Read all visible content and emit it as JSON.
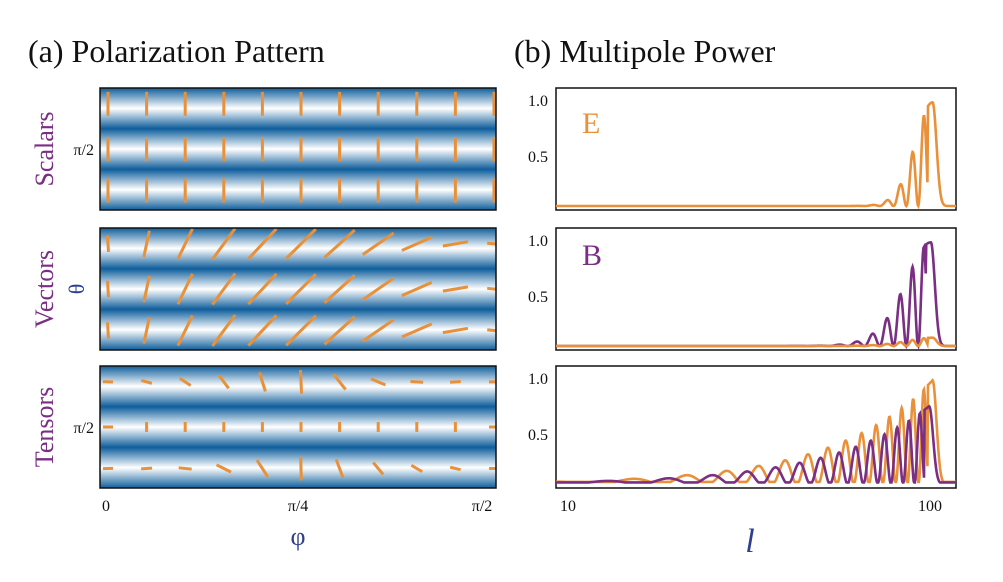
{
  "figure": {
    "panel_a_title": "(a) Polarization Pattern",
    "panel_b_title": "(b) Multipole Power"
  },
  "colors": {
    "orange": "#E8913A",
    "purple": "#7A2E84",
    "blue_dark": "#0F5E9C",
    "blue_light": "#FFFFFF",
    "axis_label": "#2F3E8F",
    "frame": "#111111"
  },
  "chart_data": [
    {
      "type": "heatmap",
      "panel": "a",
      "title": "(a) Polarization Pattern",
      "xlabel": "φ",
      "ylabel": "θ",
      "x_ticks": [
        "0",
        "π/4",
        "π/2"
      ],
      "rows": [
        {
          "name": "Scalars",
          "y_tick": "π/2",
          "pattern": "vertical"
        },
        {
          "name": "Vectors",
          "y_tick": "",
          "pattern": "tilted"
        },
        {
          "name": "Tensors",
          "y_tick": "π/2",
          "pattern": "curl"
        }
      ],
      "stripe_rows": 3,
      "stick_columns": 9
    },
    {
      "type": "line",
      "panel": "b",
      "title": "(b) Multipole Power",
      "xlabel": "l",
      "x_scale": "log",
      "x_ticks": [
        "10",
        "100"
      ],
      "xlim": [
        9,
        110
      ],
      "y_ticks": [
        "0.5",
        "1.0"
      ],
      "ylim": [
        0,
        1.1
      ],
      "rows": [
        {
          "name": "Scalars",
          "label": "E",
          "label_color": "orange",
          "series": [
            {
              "name": "E",
              "color": "orange",
              "peak_l": 95,
              "peak": 1.0,
              "envelope": "scalar"
            }
          ]
        },
        {
          "name": "Vectors",
          "label": "B",
          "label_color": "purple",
          "series": [
            {
              "name": "B",
              "color": "purple",
              "peak_l": 94,
              "peak": 1.0,
              "envelope": "vector"
            },
            {
              "name": "E",
              "color": "orange",
              "peak_l": 95,
              "peak": 0.08,
              "envelope": "vector_small"
            }
          ]
        },
        {
          "name": "Tensors",
          "label": "",
          "label_color": "orange",
          "series": [
            {
              "name": "E",
              "color": "orange",
              "peak_l": 95,
              "peak": 1.0,
              "envelope": "tensor"
            },
            {
              "name": "B",
              "color": "purple",
              "peak_l": 93,
              "peak": 0.75,
              "envelope": "tensor"
            }
          ]
        }
      ]
    }
  ]
}
